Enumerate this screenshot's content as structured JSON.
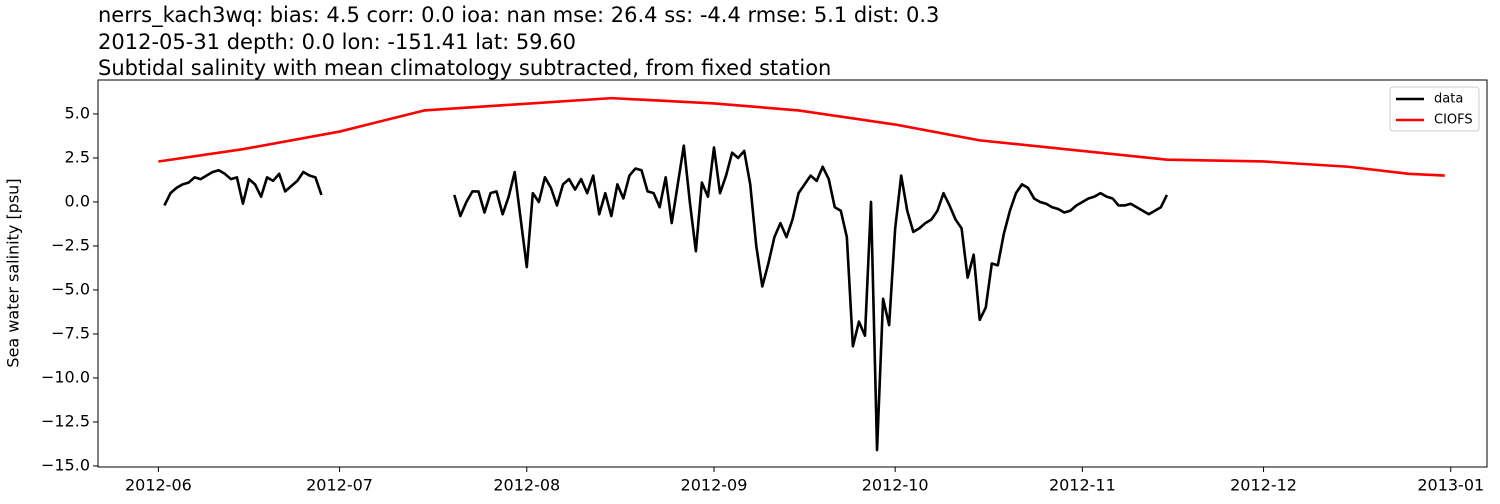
{
  "chart_data": {
    "type": "line",
    "title": [
      "nerrs_kach3wq: bias: 4.5  corr: 0.0  ioa: nan  mse: 26.4  ss: -4.4  rmse: 5.1  dist: 0.3",
      "2012-05-31 depth: 0.0 lon: -151.41 lat: 59.60",
      "Subtidal salinity with mean climatology subtracted, from fixed station"
    ],
    "ylabel": "Sea water salinity [psu]",
    "xlim": [
      "2012-05-22",
      "2013-01-07"
    ],
    "xticks": [
      {
        "value": "2012-06-01",
        "label": "2012-06"
      },
      {
        "value": "2012-07-01",
        "label": "2012-07"
      },
      {
        "value": "2012-08-01",
        "label": "2012-08"
      },
      {
        "value": "2012-09-01",
        "label": "2012-09"
      },
      {
        "value": "2012-10-01",
        "label": "2012-10"
      },
      {
        "value": "2012-11-01",
        "label": "2012-11"
      },
      {
        "value": "2012-12-01",
        "label": "2012-12"
      },
      {
        "value": "2013-01-01",
        "label": "2013-01"
      }
    ],
    "ylim": [
      -15.06,
      6.93
    ],
    "yticks": [
      {
        "value": 5,
        "label": "5.0"
      },
      {
        "value": 2.5,
        "label": "2.5"
      },
      {
        "value": 0,
        "label": "0.0"
      },
      {
        "value": -2.5,
        "label": "−2.5"
      },
      {
        "value": -5,
        "label": "−5.0"
      },
      {
        "value": -7.5,
        "label": "−7.5"
      },
      {
        "value": -10,
        "label": "−10.0"
      },
      {
        "value": -12.5,
        "label": "−12.5"
      },
      {
        "value": -15,
        "label": "−15.0"
      }
    ],
    "legend": "upper right",
    "series": [
      {
        "name": "data",
        "color": "#000000",
        "x": [
          "2012-06-02",
          "2012-06-03",
          "2012-06-04",
          "2012-06-05",
          "2012-06-06",
          "2012-06-07",
          "2012-06-08",
          "2012-06-09",
          "2012-06-10",
          "2012-06-11",
          "2012-06-12",
          "2012-06-13",
          "2012-06-14",
          "2012-06-15",
          "2012-06-16",
          "2012-06-17",
          "2012-06-18",
          "2012-06-19",
          "2012-06-20",
          "2012-06-21",
          "2012-06-22",
          "2012-06-23",
          "2012-06-24",
          "2012-06-25",
          "2012-06-26",
          "2012-06-27",
          "2012-06-28",
          "2012-07-10",
          "2012-07-20",
          "2012-07-21",
          "2012-07-22",
          "2012-07-23",
          "2012-07-24",
          "2012-07-25",
          "2012-07-26",
          "2012-07-27",
          "2012-07-28",
          "2012-07-29",
          "2012-07-30",
          "2012-07-31",
          "2012-08-01",
          "2012-08-02",
          "2012-08-03",
          "2012-08-04",
          "2012-08-05",
          "2012-08-06",
          "2012-08-07",
          "2012-08-08",
          "2012-08-09",
          "2012-08-10",
          "2012-08-11",
          "2012-08-12",
          "2012-08-13",
          "2012-08-14",
          "2012-08-15",
          "2012-08-16",
          "2012-08-17",
          "2012-08-18",
          "2012-08-19",
          "2012-08-20",
          "2012-08-21",
          "2012-08-22",
          "2012-08-23",
          "2012-08-24",
          "2012-08-25",
          "2012-08-26",
          "2012-08-27",
          "2012-08-28",
          "2012-08-29",
          "2012-08-30",
          "2012-08-31",
          "2012-09-01",
          "2012-09-02",
          "2012-09-03",
          "2012-09-04",
          "2012-09-05",
          "2012-09-06",
          "2012-09-07",
          "2012-09-08",
          "2012-09-09",
          "2012-09-10",
          "2012-09-11",
          "2012-09-12",
          "2012-09-13",
          "2012-09-14",
          "2012-09-15",
          "2012-09-16",
          "2012-09-17",
          "2012-09-18",
          "2012-09-19",
          "2012-09-20",
          "2012-09-21",
          "2012-09-22",
          "2012-09-23",
          "2012-09-24",
          "2012-09-25",
          "2012-09-26",
          "2012-09-27",
          "2012-09-28",
          "2012-09-29",
          "2012-09-30",
          "2012-10-01",
          "2012-10-02",
          "2012-10-03",
          "2012-10-04",
          "2012-10-05",
          "2012-10-06",
          "2012-10-07",
          "2012-10-08",
          "2012-10-09",
          "2012-10-10",
          "2012-10-11",
          "2012-10-12",
          "2012-10-13",
          "2012-10-14",
          "2012-10-15",
          "2012-10-16",
          "2012-10-17",
          "2012-10-18",
          "2012-10-19",
          "2012-10-20",
          "2012-10-21",
          "2012-10-22",
          "2012-10-23",
          "2012-10-24",
          "2012-10-25",
          "2012-10-26",
          "2012-10-27",
          "2012-10-28",
          "2012-10-29",
          "2012-10-30",
          "2012-10-31",
          "2012-11-01",
          "2012-11-02",
          "2012-11-03",
          "2012-11-04",
          "2012-11-05",
          "2012-11-06",
          "2012-11-07",
          "2012-11-08",
          "2012-11-09",
          "2012-11-10",
          "2012-11-11",
          "2012-11-12",
          "2012-11-13",
          "2012-11-14",
          "2012-11-15"
        ],
        "values": [
          -0.2,
          0.5,
          0.8,
          1.0,
          1.1,
          1.4,
          1.3,
          1.5,
          1.7,
          1.8,
          1.6,
          1.3,
          1.4,
          -0.1,
          1.3,
          1.0,
          0.3,
          1.4,
          1.2,
          1.6,
          0.6,
          0.9,
          1.2,
          1.7,
          1.5,
          1.4,
          0.4,
          null,
          0.4,
          -0.8,
          0.0,
          0.6,
          0.6,
          -0.6,
          0.5,
          0.6,
          -0.7,
          0.3,
          1.7,
          -1.0,
          -3.7,
          0.5,
          0.0,
          1.4,
          0.8,
          -0.2,
          1.0,
          1.3,
          0.7,
          1.3,
          0.5,
          1.5,
          -0.7,
          0.5,
          -0.8,
          1.0,
          0.2,
          1.5,
          1.9,
          1.8,
          0.6,
          0.5,
          -0.3,
          1.4,
          -1.2,
          1.0,
          3.2,
          0.0,
          -2.8,
          1.1,
          0.3,
          3.1,
          0.5,
          1.5,
          2.8,
          2.5,
          2.9,
          1.0,
          -2.5,
          -4.8,
          -3.5,
          -2.0,
          -1.2,
          -2.0,
          -1.0,
          0.5,
          1.0,
          1.5,
          1.2,
          2.0,
          1.3,
          -0.3,
          -0.5,
          -2.0,
          -8.2,
          -6.8,
          -7.6,
          0.0,
          -14.1,
          -5.5,
          -7.0,
          -1.5,
          1.5,
          -0.5,
          -1.7,
          -1.5,
          -1.2,
          -1.0,
          -0.5,
          0.5,
          -0.2,
          -1.0,
          -1.5,
          -4.3,
          -3.0,
          -6.7,
          -6.0,
          -3.5,
          -3.6,
          -1.8,
          -0.5,
          0.5,
          1.0,
          0.8,
          0.2,
          0.0,
          -0.1,
          -0.3,
          -0.4,
          -0.6,
          -0.5,
          -0.2,
          0.0,
          0.2,
          0.3,
          0.5,
          0.3,
          0.2,
          -0.2,
          -0.2,
          -0.1,
          -0.3,
          -0.5,
          -0.7,
          -0.5,
          -0.3,
          0.4
        ]
      },
      {
        "name": "CIOFS",
        "color": "#ff0000",
        "x": [
          "2012-06-01",
          "2012-06-15",
          "2012-07-01",
          "2012-07-15",
          "2012-08-15",
          "2012-09-01",
          "2012-09-15",
          "2012-10-01",
          "2012-10-15",
          "2012-11-01",
          "2012-11-15",
          "2012-12-01",
          "2012-12-15",
          "2012-12-25",
          "2012-12-31"
        ],
        "values": [
          2.3,
          3.0,
          4.0,
          5.2,
          5.9,
          5.6,
          5.2,
          4.4,
          3.5,
          2.9,
          2.4,
          2.3,
          2.0,
          1.6,
          1.5
        ]
      }
    ]
  }
}
